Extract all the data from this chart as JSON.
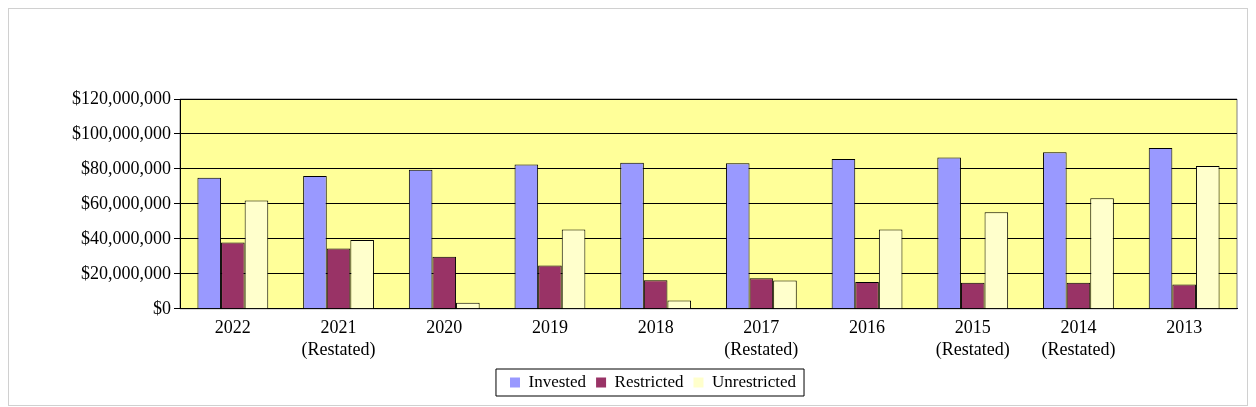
{
  "chart_data": {
    "type": "bar",
    "categories": [
      "2022",
      "2021\n(Restated)",
      "2020",
      "2019",
      "2018",
      "2017\n(Restated)",
      "2016",
      "2015\n(Restated)",
      "2014\n(Restated)",
      "2013"
    ],
    "series": [
      {
        "name": "Invested",
        "color": "#9999ff",
        "values": [
          75000000,
          76000000,
          79600000,
          82500000,
          83600000,
          83200000,
          85700000,
          86500000,
          89500000,
          92000000
        ]
      },
      {
        "name": "Restricted",
        "color": "#993366",
        "values": [
          37900000,
          34500000,
          29700000,
          24800000,
          16400000,
          17500000,
          15400000,
          14900000,
          14900000,
          13900000
        ]
      },
      {
        "name": "Unrestricted",
        "color": "#ffffcc",
        "values": [
          61900000,
          39400000,
          3400000,
          45300000,
          4800000,
          16200000,
          45300000,
          55200000,
          63200000,
          81700000
        ]
      }
    ],
    "ylim": [
      0,
      120000000
    ],
    "yticks": [
      {
        "value": 0,
        "label": "$0"
      },
      {
        "value": 20000000,
        "label": "$20,000,000"
      },
      {
        "value": 40000000,
        "label": "$40,000,000"
      },
      {
        "value": 60000000,
        "label": "$60,000,000"
      },
      {
        "value": 80000000,
        "label": "$80,000,000"
      },
      {
        "value": 100000000,
        "label": "$100,000,000"
      },
      {
        "value": 120000000,
        "label": "$120,000,000"
      }
    ],
    "grid": "y",
    "legend": "bottom"
  }
}
